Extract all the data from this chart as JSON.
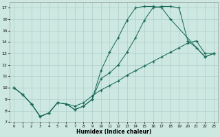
{
  "xlabel": "Humidex (Indice chaleur)",
  "bg_color": "#cce8e0",
  "line_color": "#1a6b5a",
  "grid_color": "#b0cccc",
  "xlim": [
    -0.5,
    23.5
  ],
  "ylim": [
    7,
    17.5
  ],
  "yticks": [
    7,
    8,
    9,
    10,
    11,
    12,
    13,
    14,
    15,
    16,
    17
  ],
  "xticks": [
    0,
    1,
    2,
    3,
    4,
    5,
    6,
    7,
    8,
    9,
    10,
    11,
    12,
    13,
    14,
    15,
    16,
    17,
    18,
    19,
    20,
    21,
    22,
    23
  ],
  "line1_x": [
    0,
    1,
    2,
    3,
    4,
    5,
    6,
    7,
    8,
    9,
    10,
    11,
    12,
    13,
    14,
    15,
    16,
    17,
    18,
    22,
    23
  ],
  "line1_y": [
    10.0,
    9.4,
    8.6,
    7.5,
    7.8,
    8.7,
    8.6,
    8.1,
    8.4,
    9.0,
    11.5,
    13.1,
    14.4,
    15.9,
    17.0,
    17.1,
    17.1,
    17.0,
    16.0,
    12.7,
    13.0
  ],
  "line2_x": [
    0,
    1,
    2,
    3,
    4,
    5,
    6,
    7,
    8,
    9,
    10,
    11,
    12,
    13,
    14,
    15,
    16,
    17,
    18,
    19,
    20,
    21,
    22,
    23
  ],
  "line2_y": [
    10.0,
    9.4,
    8.6,
    7.5,
    7.8,
    8.7,
    8.6,
    8.1,
    8.4,
    9.0,
    10.8,
    11.3,
    12.0,
    13.1,
    14.4,
    15.9,
    17.0,
    17.1,
    17.1,
    17.0,
    14.1,
    13.5,
    12.7,
    13.0
  ],
  "line3_x": [
    0,
    1,
    2,
    3,
    4,
    5,
    6,
    7,
    8,
    9,
    10,
    11,
    12,
    13,
    14,
    15,
    16,
    17,
    18,
    19,
    20,
    21,
    22,
    23
  ],
  "line3_y": [
    10.0,
    9.4,
    8.6,
    7.5,
    7.8,
    8.7,
    8.6,
    8.4,
    8.7,
    9.3,
    9.8,
    10.2,
    10.6,
    11.1,
    11.5,
    11.9,
    12.3,
    12.7,
    13.1,
    13.5,
    13.9,
    14.1,
    13.0,
    13.0
  ]
}
